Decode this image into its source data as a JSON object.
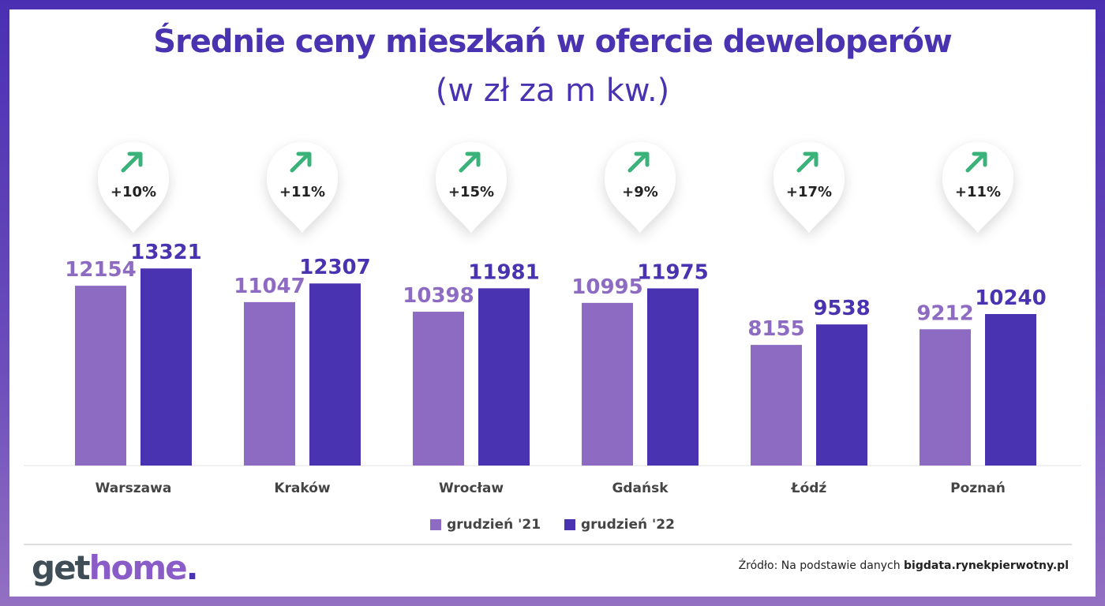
{
  "chart_data": {
    "type": "bar",
    "title": "Średnie ceny mieszkań w ofercie deweloperów",
    "subtitle": "(w zł za m kw.)",
    "categories": [
      "Warszawa",
      "Kraków",
      "Wrocław",
      "Gdańsk",
      "Łódź",
      "Poznań"
    ],
    "series": [
      {
        "name": "grudzień '21",
        "values": [
          12154,
          11047,
          10398,
          10995,
          8155,
          9212
        ],
        "color": "#8e6bc2"
      },
      {
        "name": "grudzień '22",
        "values": [
          13321,
          12307,
          11981,
          11975,
          9538,
          10240
        ],
        "color": "#4a33b0"
      }
    ],
    "changes": [
      "+10%",
      "+11%",
      "+15%",
      "+9%",
      "+17%",
      "+11%"
    ],
    "change_icon": "arrow-up-right-icon",
    "change_color": "#3bb27a",
    "ylim": [
      0,
      16000
    ],
    "grid": false,
    "legend": "bottom"
  },
  "footer": {
    "logo_get": "get",
    "logo_home": "home",
    "logo_dot": ".",
    "source_prefix": "Źródło: Na podstawie danych ",
    "source_bold": "bigdata.rynekpierwotny.pl"
  }
}
